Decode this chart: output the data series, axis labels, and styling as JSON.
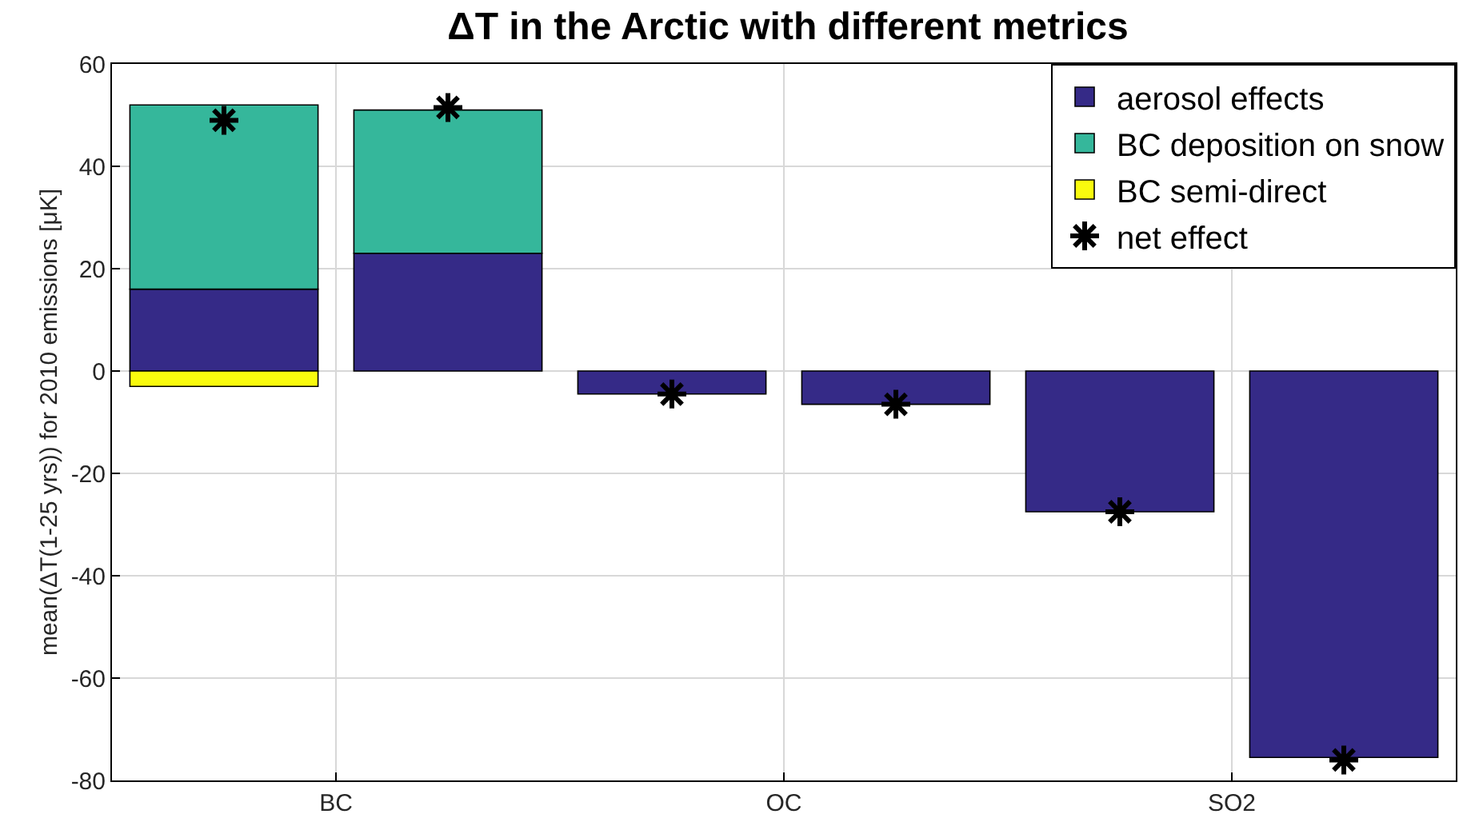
{
  "chart_data": {
    "type": "bar",
    "title": "ΔT in the Arctic with different metrics",
    "ylabel": "mean(ΔT(1-25 yrs)) for 2010 emissions [μK]",
    "categories": [
      null,
      null,
      null,
      null,
      null,
      null
    ],
    "annotations": [
      "BC",
      "OC",
      "SO2"
    ],
    "ylim": [
      -80,
      60
    ],
    "yticks": [
      -80,
      -60,
      -40,
      -20,
      0,
      20,
      40,
      60
    ],
    "stacked": true,
    "grid": true,
    "legend": "top right",
    "series": [
      {
        "name": "aerosol effects",
        "color": "#352a87",
        "values": [
          16,
          23,
          -4.5,
          -6.5,
          -27.5,
          -75.5
        ]
      },
      {
        "name": "BC deposition on snow",
        "color": "#35b79b",
        "values": [
          36,
          28,
          null,
          null,
          null,
          null
        ]
      },
      {
        "name": "BC semi-direct",
        "color": "#f9fb0e",
        "values": [
          -3,
          null,
          null,
          null,
          null,
          null
        ]
      },
      {
        "name": "net effect",
        "type": "scatter",
        "marker": "cross",
        "color": "#000000",
        "values": [
          49,
          51.5,
          -4.5,
          -6.5,
          -27.5,
          -76
        ]
      }
    ]
  }
}
